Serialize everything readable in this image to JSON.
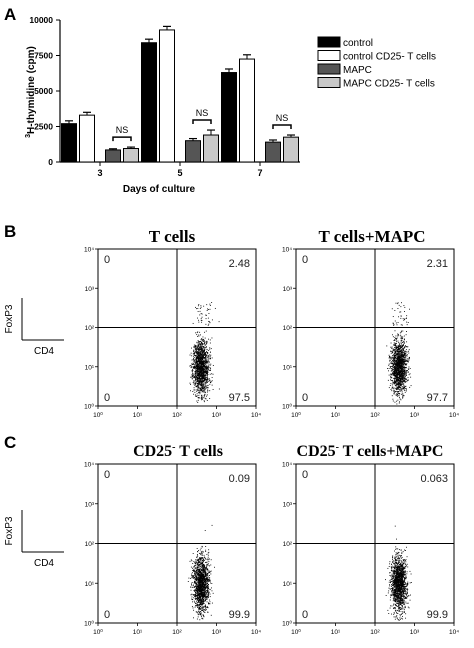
{
  "panels": {
    "a": "A",
    "b": "B",
    "c": "C"
  },
  "chart_data": [
    {
      "type": "bar",
      "panel": "A",
      "ylabel_sup": "3",
      "ylabel": "H-thymidine (cpm)",
      "xlabel": "Days of culture",
      "categories": [
        "3",
        "5",
        "7"
      ],
      "ylim": [
        0,
        10000
      ],
      "yticks": [
        "0",
        "2500",
        "5000",
        "7500",
        "10000"
      ],
      "series": [
        {
          "name": "control",
          "color": "#000000",
          "values": [
            2700,
            8400,
            6300
          ],
          "errors": [
            200,
            250,
            250
          ]
        },
        {
          "name": "control CD25- T cells",
          "color": "#ffffff",
          "values": [
            3300,
            9300,
            7250
          ],
          "errors": [
            200,
            250,
            300
          ]
        },
        {
          "name": "MAPC",
          "color": "#555555",
          "values": [
            850,
            1500,
            1400
          ],
          "errors": [
            80,
            150,
            150
          ]
        },
        {
          "name": "MAPC CD25- T cells",
          "color": "#c8c8c8",
          "values": [
            950,
            1900,
            1750
          ],
          "errors": [
            100,
            350,
            150
          ]
        }
      ],
      "annotations": [
        "NS",
        "NS",
        "NS"
      ]
    },
    {
      "type": "scatter",
      "panel": "B",
      "plots": [
        {
          "title": "T cells",
          "upper_right": "2.48",
          "lower_right": "97.5",
          "upper_left": "0",
          "lower_left": "0"
        },
        {
          "title": "T cells+MAPC",
          "upper_right": "2.31",
          "lower_right": "97.7",
          "upper_left": "0",
          "lower_left": "0"
        }
      ],
      "ylabel": "FoxP3",
      "xlabel": "CD4",
      "axis": "log",
      "range": [
        1,
        10000
      ],
      "ticks": [
        "10⁰",
        "10¹",
        "10²",
        "10³",
        "10⁴"
      ]
    },
    {
      "type": "scatter",
      "panel": "C",
      "plots": [
        {
          "title_pre": "CD25",
          "title_sup": "-",
          "title_post": " T cells",
          "upper_right": "0.09",
          "lower_right": "99.9",
          "upper_left": "0",
          "lower_left": "0"
        },
        {
          "title_pre": "CD25",
          "title_sup": "-",
          "title_post": " T cells+MAPC",
          "upper_right": "0.063",
          "lower_right": "99.9",
          "upper_left": "0",
          "lower_left": "0"
        }
      ],
      "ylabel": "FoxP3",
      "xlabel": "CD4",
      "axis": "log",
      "range": [
        1,
        10000
      ],
      "ticks": [
        "10⁰",
        "10¹",
        "10²",
        "10³",
        "10⁴"
      ]
    }
  ]
}
